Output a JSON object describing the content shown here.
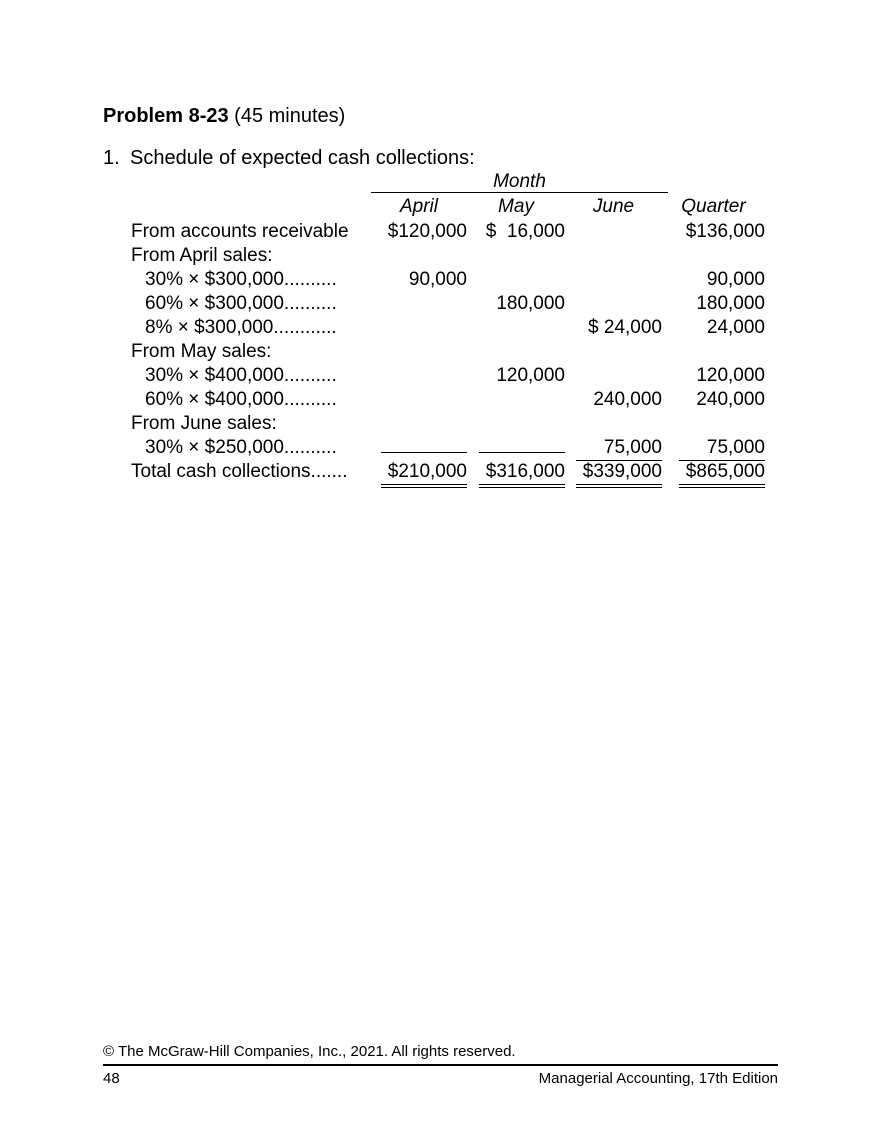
{
  "page": {
    "problem_title": "Problem 8-23",
    "problem_subtitle": " (45 minutes)",
    "list_number": "1.",
    "list_text": "Schedule of expected cash collections:"
  },
  "table": {
    "month_header": "Month",
    "columns": [
      "April",
      "May",
      "June",
      "Quarter"
    ],
    "rows": [
      {
        "label": "From accounts receivable",
        "cells": [
          "$120,000",
          "$  16,000",
          "",
          "$136,000"
        ]
      },
      {
        "label": "From April sales:",
        "cells": [
          "",
          "",
          "",
          ""
        ]
      },
      {
        "label": "30% × $300,000..........",
        "cells": [
          "90,000",
          "",
          "",
          "90,000"
        ]
      },
      {
        "label": "60% × $300,000..........",
        "cells": [
          "",
          "180,000",
          "",
          "180,000"
        ]
      },
      {
        "label": "8% × $300,000............",
        "cells": [
          "",
          "",
          "$ 24,000",
          "24,000"
        ]
      },
      {
        "label": "From May sales:",
        "cells": [
          "",
          "",
          "",
          ""
        ]
      },
      {
        "label": "30% × $400,000..........",
        "cells": [
          "",
          "120,000",
          "",
          "120,000"
        ]
      },
      {
        "label": "60% × $400,000..........",
        "cells": [
          "",
          "",
          "240,000",
          "240,000"
        ]
      },
      {
        "label": "From June sales:",
        "cells": [
          "",
          "",
          "",
          ""
        ]
      },
      {
        "label": "30% × $250,000..........",
        "cells": [
          "",
          "",
          "75,000",
          "75,000"
        ]
      },
      {
        "label": "Total cash collections.......",
        "cells": [
          "$210,000",
          "$316,000",
          "$339,000",
          "$865,000"
        ]
      }
    ]
  },
  "footer": {
    "copyright": "© The McGraw-Hill Companies, Inc., 2021. All rights reserved.",
    "page_number": "48",
    "edition": "Managerial Accounting, 17th Edition"
  }
}
